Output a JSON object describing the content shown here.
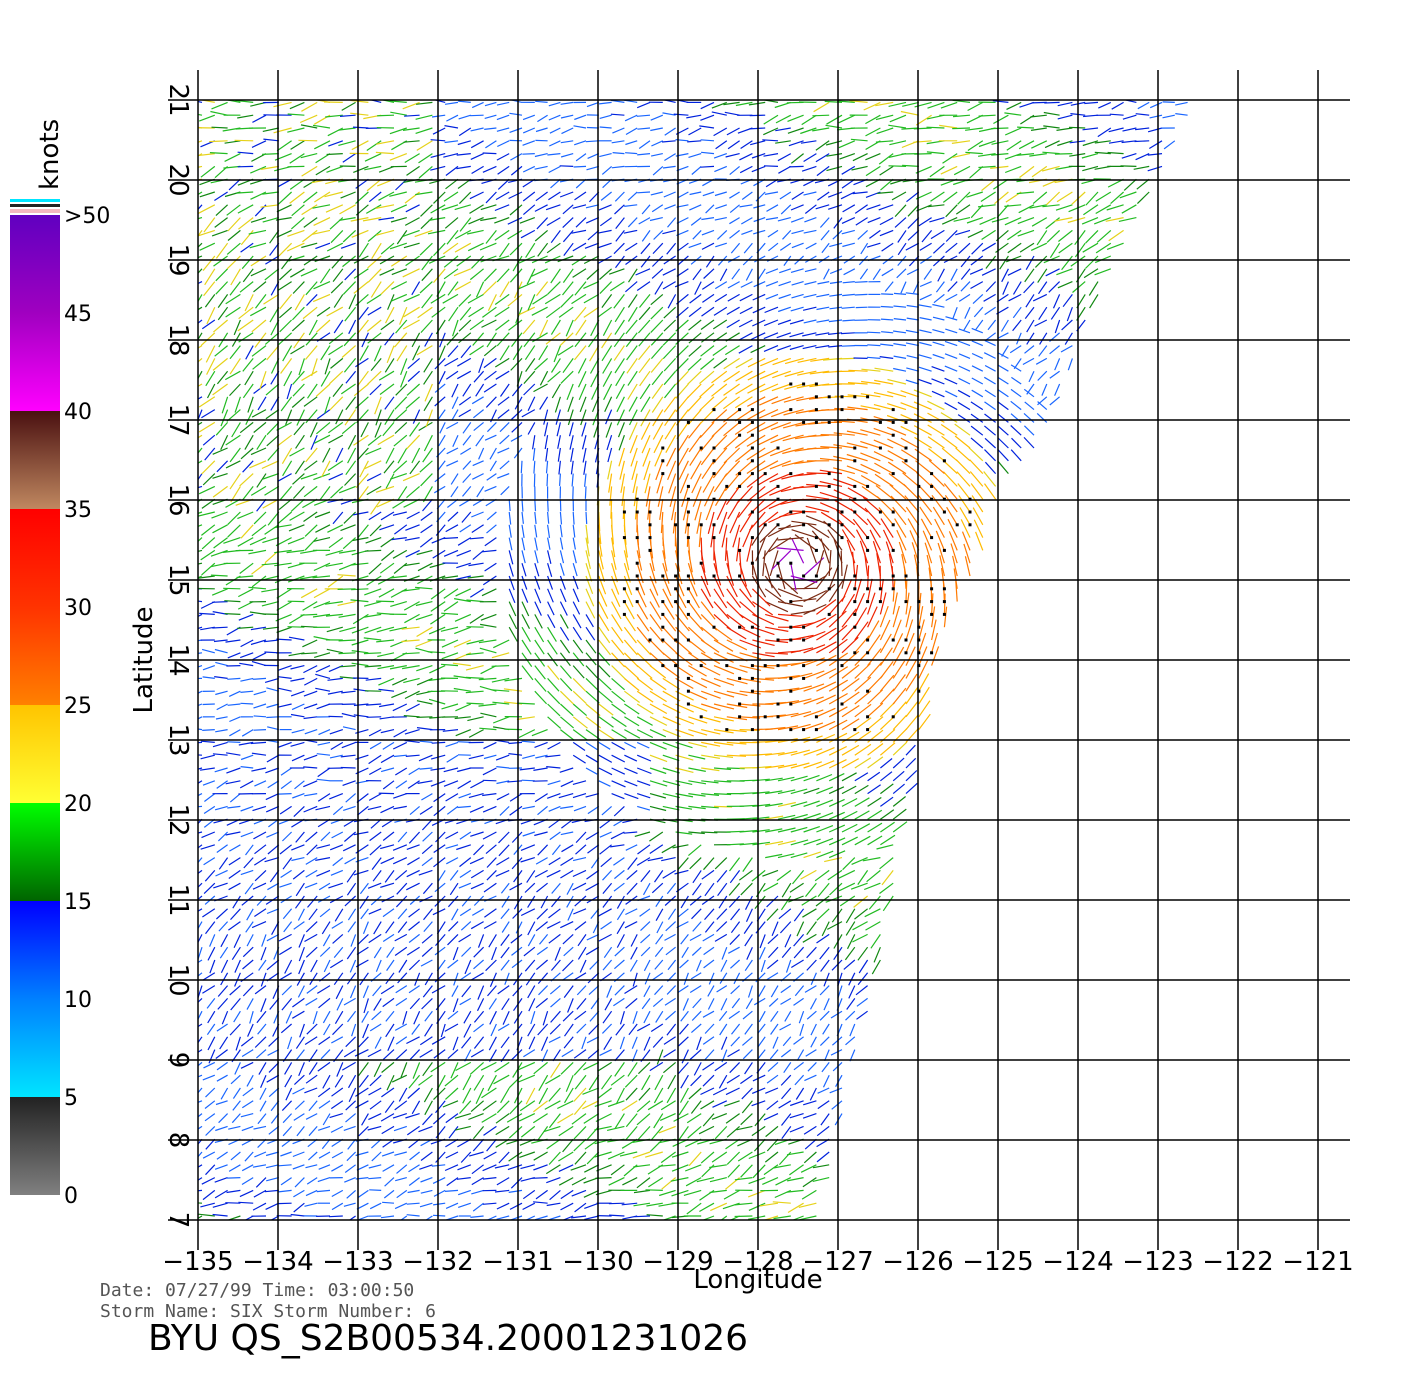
{
  "chart_data": {
    "type": "wind-vector-field",
    "xlabel": "Longitude",
    "ylabel": "Latitude",
    "xlim": [
      -135,
      -121
    ],
    "ylim": [
      7,
      21
    ],
    "x_ticks": [
      "−135",
      "−134",
      "−133",
      "−132",
      "−131",
      "−130",
      "−129",
      "−128",
      "−127",
      "−126",
      "−125",
      "−124",
      "−123",
      "−122",
      "−121"
    ],
    "x_tick_values": [
      -135,
      -134,
      -133,
      -132,
      -131,
      -130,
      -129,
      -128,
      -127,
      -126,
      -125,
      -124,
      -123,
      -122,
      -121
    ],
    "y_ticks": [
      "7",
      "8",
      "9",
      "10",
      "11",
      "12",
      "13",
      "14",
      "15",
      "16",
      "17",
      "18",
      "19",
      "20",
      "21"
    ],
    "y_tick_values": [
      7,
      8,
      9,
      10,
      11,
      12,
      13,
      14,
      15,
      16,
      17,
      18,
      19,
      20,
      21
    ],
    "grid": true,
    "swath_edge": [
      [
        -122.5,
        21
      ],
      [
        -123.5,
        19
      ],
      [
        -124.0,
        18
      ],
      [
        -124.3,
        17
      ],
      [
        -125.0,
        16
      ],
      [
        -125.3,
        15
      ],
      [
        -125.8,
        14
      ],
      [
        -126.0,
        13
      ],
      [
        -126.2,
        12
      ],
      [
        -126.3,
        11
      ],
      [
        -126.5,
        10
      ],
      [
        -126.8,
        9
      ],
      [
        -127.0,
        8
      ],
      [
        -127.2,
        7
      ]
    ],
    "storm_center": [
      -127.5,
      15.2
    ],
    "colorbar": {
      "unit": "knots",
      "labels": [
        ">50",
        "45",
        "40",
        "35",
        "30",
        "25",
        "20",
        "15",
        "10",
        "5",
        "0"
      ],
      "stops": [
        {
          "value": 0,
          "color": "#808080"
        },
        {
          "value": 5,
          "color": "#222222"
        },
        {
          "value": 5,
          "color": "#00e5ff"
        },
        {
          "value": 10,
          "color": "#0080ff"
        },
        {
          "value": 15,
          "color": "#0000ff"
        },
        {
          "value": 15,
          "color": "#006400"
        },
        {
          "value": 20,
          "color": "#00ff00"
        },
        {
          "value": 20,
          "color": "#ffff33"
        },
        {
          "value": 25,
          "color": "#ffc400"
        },
        {
          "value": 25,
          "color": "#ff8000"
        },
        {
          "value": 30,
          "color": "#ff3300"
        },
        {
          "value": 35,
          "color": "#ff0000"
        },
        {
          "value": 35,
          "color": "#c08860"
        },
        {
          "value": 40,
          "color": "#4a1010"
        },
        {
          "value": 40,
          "color": "#ff00ff"
        },
        {
          "value": 45,
          "color": "#a000c0"
        },
        {
          "value": 50,
          "color": "#6000c0"
        }
      ]
    }
  },
  "info": {
    "date_line": "Date: 07/27/99   Time: 03:00:50",
    "storm_line": "Storm Name: SIX   Storm Number: 6",
    "product": "BYU QS_S2B00534.20001231026"
  }
}
